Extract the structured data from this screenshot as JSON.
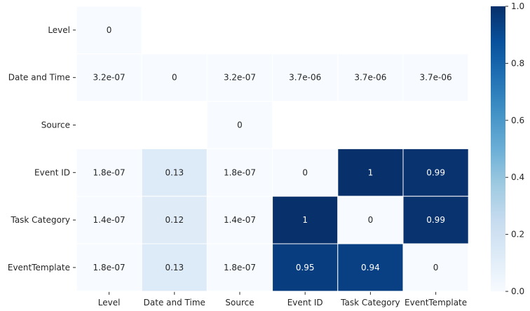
{
  "chart_data": {
    "type": "heatmap",
    "title": "",
    "xlabel": "",
    "ylabel": "",
    "x_categories": [
      "Level",
      "Date and Time",
      "Source",
      "Event ID",
      "Task Category",
      "EventTemplate"
    ],
    "y_categories": [
      "Level",
      "Date and Time",
      "Source",
      "Event ID",
      "Task Category",
      "EventTemplate"
    ],
    "cells": [
      [
        {
          "label": "0",
          "value": 0
        },
        null,
        null,
        null,
        null,
        null
      ],
      [
        {
          "label": "3.2e-07",
          "value": 3.2e-07
        },
        {
          "label": "0",
          "value": 0
        },
        {
          "label": "3.2e-07",
          "value": 3.2e-07
        },
        {
          "label": "3.7e-06",
          "value": 3.7e-06
        },
        {
          "label": "3.7e-06",
          "value": 3.7e-06
        },
        {
          "label": "3.7e-06",
          "value": 3.7e-06
        }
      ],
      [
        null,
        null,
        {
          "label": "0",
          "value": 0
        },
        null,
        null,
        null
      ],
      [
        {
          "label": "1.8e-07",
          "value": 1.8e-07
        },
        {
          "label": "0.13",
          "value": 0.13
        },
        {
          "label": "1.8e-07",
          "value": 1.8e-07
        },
        {
          "label": "0",
          "value": 0
        },
        {
          "label": "1",
          "value": 1
        },
        {
          "label": "0.99",
          "value": 0.99
        }
      ],
      [
        {
          "label": "1.4e-07",
          "value": 1.4e-07
        },
        {
          "label": "0.12",
          "value": 0.12
        },
        {
          "label": "1.4e-07",
          "value": 1.4e-07
        },
        {
          "label": "1",
          "value": 1
        },
        {
          "label": "0",
          "value": 0
        },
        {
          "label": "0.99",
          "value": 0.99
        }
      ],
      [
        {
          "label": "1.8e-07",
          "value": 1.8e-07
        },
        {
          "label": "0.13",
          "value": 0.13
        },
        {
          "label": "1.8e-07",
          "value": 1.8e-07
        },
        {
          "label": "0.95",
          "value": 0.95
        },
        {
          "label": "0.94",
          "value": 0.94
        },
        {
          "label": "0",
          "value": 0
        }
      ]
    ],
    "colorbar": {
      "range": [
        0.0,
        1.0
      ],
      "ticks": [
        "0.0",
        "0.2",
        "0.4",
        "0.6",
        "0.8",
        "1.0"
      ],
      "colormap": "Blues",
      "low_color": "#f7fbff",
      "high_color": "#08306b"
    },
    "grid": false,
    "legend": "colorbar-right"
  }
}
